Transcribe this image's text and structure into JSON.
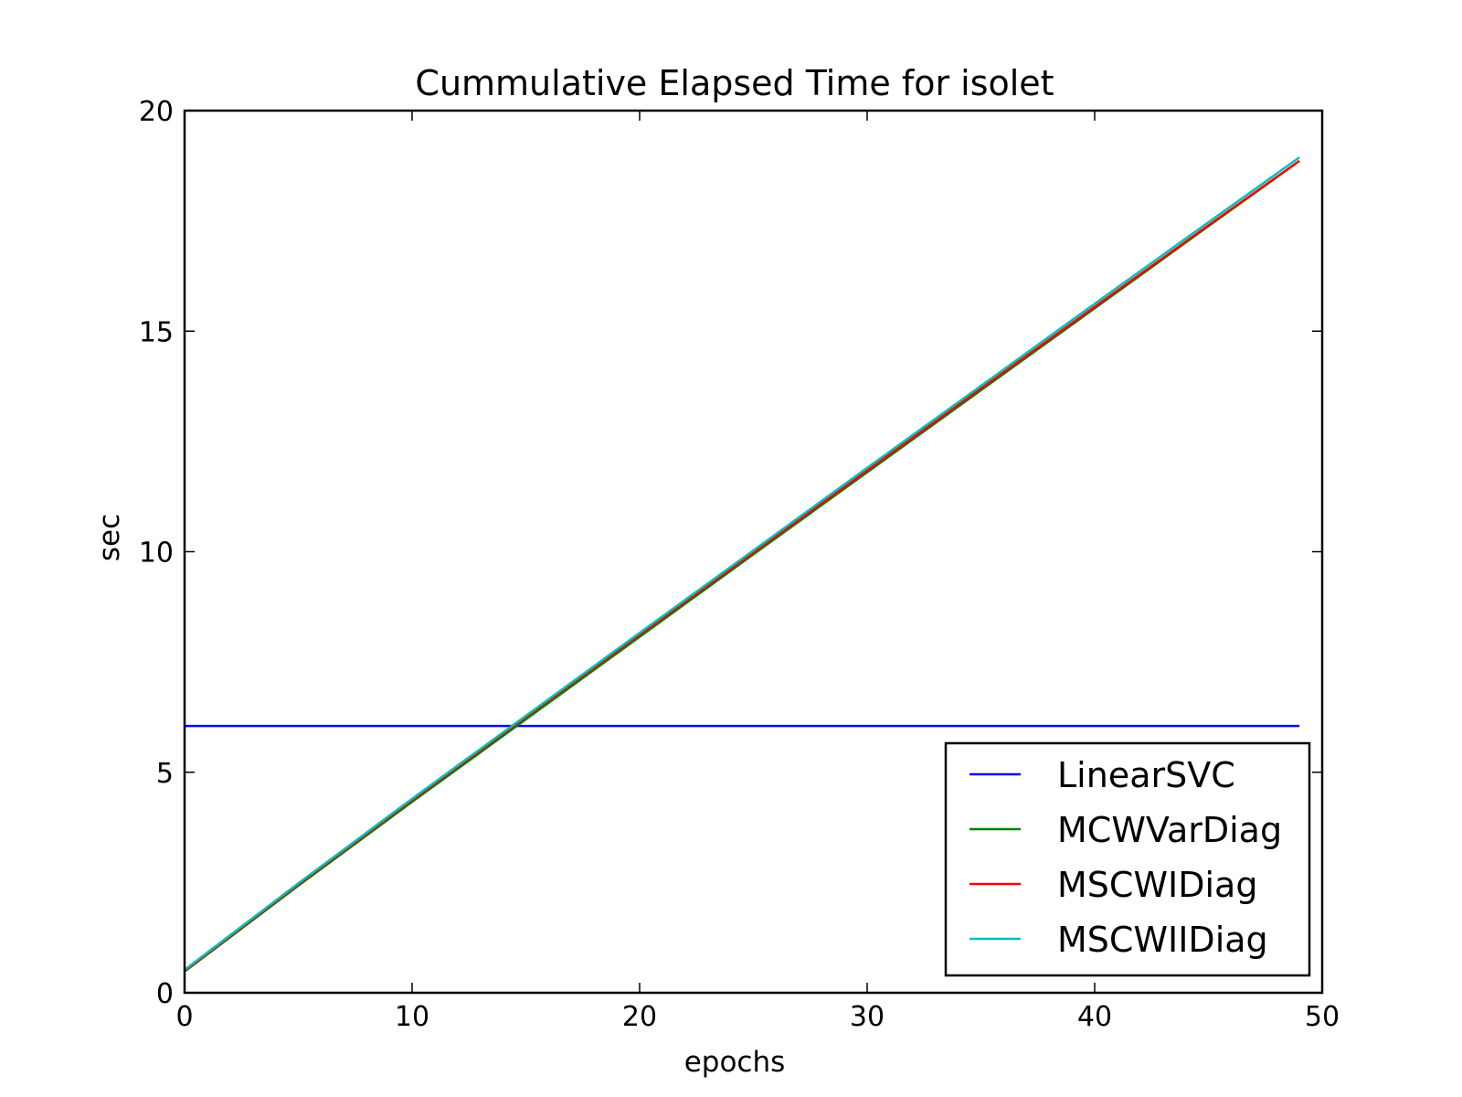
{
  "chart_data": {
    "type": "line",
    "title": "Cummulative Elapsed Time for isolet",
    "xlabel": "epochs",
    "ylabel": "sec",
    "xlim": [
      0,
      50
    ],
    "ylim": [
      0,
      20
    ],
    "xticks": [
      0,
      10,
      20,
      30,
      40,
      50
    ],
    "yticks": [
      0,
      5,
      10,
      15,
      20
    ],
    "grid": false,
    "legend_position": "lower-right",
    "series": [
      {
        "name": "LinearSVC",
        "color": "#0000ff",
        "x": [
          0,
          49
        ],
        "y": [
          6.05,
          6.05
        ]
      },
      {
        "name": "MCWVarDiag",
        "color": "#008000",
        "x": [
          0,
          5,
          10,
          15,
          20,
          25,
          30,
          35,
          40,
          45,
          49
        ],
        "y": [
          0.48,
          2.43,
          4.33,
          6.2,
          8.07,
          9.94,
          11.8,
          13.66,
          15.52,
          17.38,
          18.86
        ]
      },
      {
        "name": "MSCWIDiag",
        "color": "#ff0000",
        "x": [
          0,
          5,
          10,
          15,
          20,
          25,
          30,
          35,
          40,
          45,
          49
        ],
        "y": [
          0.5,
          2.46,
          4.37,
          6.25,
          8.12,
          9.98,
          11.84,
          13.7,
          15.55,
          17.4,
          18.86
        ]
      },
      {
        "name": "MSCWIIDiag",
        "color": "#00bfbf",
        "x": [
          0,
          5,
          10,
          15,
          20,
          25,
          30,
          35,
          40,
          45,
          49
        ],
        "y": [
          0.52,
          2.48,
          4.4,
          6.28,
          8.16,
          10.03,
          11.9,
          13.76,
          15.62,
          17.47,
          18.94
        ]
      }
    ]
  }
}
